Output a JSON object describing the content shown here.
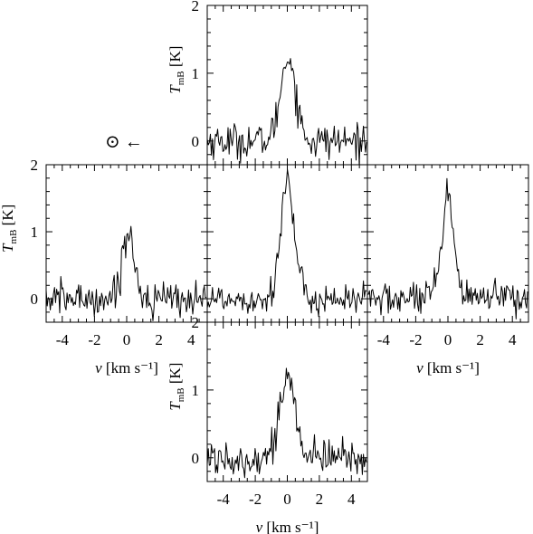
{
  "figure": {
    "sun_marker": "⊙ ←",
    "x_axis_label": "v [km s⁻¹]",
    "y_axis_label": "T_mB [K]"
  },
  "chart_data": [
    {
      "type": "line",
      "panel": "north",
      "xlim": [
        -5,
        5
      ],
      "ylim": [
        -0.35,
        2
      ],
      "x_ticks": [
        "-4",
        "-2",
        "0",
        "2",
        "4"
      ],
      "y_ticks": [
        "0",
        "1",
        "2"
      ],
      "tick_labels_shown": {
        "x": false,
        "y": true
      },
      "xlabel": "",
      "ylabel": "T_mB [K]",
      "noise_rms": 0.13,
      "series": [
        {
          "peak_velocity": 0.05,
          "peak_temperature": 1.25,
          "fwhm_km_s": 1.1
        }
      ]
    },
    {
      "type": "line",
      "panel": "east",
      "xlim": [
        -5,
        5
      ],
      "ylim": [
        -0.35,
        2
      ],
      "x_ticks": [
        "-4",
        "-2",
        "0",
        "2",
        "4"
      ],
      "y_ticks": [
        "0",
        "1",
        "2"
      ],
      "tick_labels_shown": {
        "x": true,
        "y": true
      },
      "xlabel": "v [km s⁻¹]",
      "ylabel": "T_mB [K]",
      "noise_rms": 0.13,
      "series": [
        {
          "peak_velocity": 0.1,
          "peak_temperature": 0.98,
          "fwhm_km_s": 0.9
        }
      ]
    },
    {
      "type": "line",
      "panel": "centre",
      "xlim": [
        -5,
        5
      ],
      "ylim": [
        -0.35,
        2
      ],
      "x_ticks": [
        "-4",
        "-2",
        "0",
        "2",
        "4"
      ],
      "y_ticks": [
        "0",
        "1",
        "2"
      ],
      "tick_labels_shown": {
        "x": false,
        "y": false
      },
      "xlabel": "",
      "ylabel": "",
      "noise_rms": 0.12,
      "series": [
        {
          "peak_velocity": 0.0,
          "peak_temperature": 1.75,
          "fwhm_km_s": 1.0
        }
      ]
    },
    {
      "type": "line",
      "panel": "west",
      "xlim": [
        -5,
        5
      ],
      "ylim": [
        -0.35,
        2
      ],
      "x_ticks": [
        "-4",
        "-2",
        "0",
        "2",
        "4"
      ],
      "y_ticks": [
        "0",
        "1",
        "2"
      ],
      "tick_labels_shown": {
        "x": true,
        "y": false
      },
      "xlabel": "v [km s⁻¹]",
      "ylabel": "",
      "noise_rms": 0.13,
      "series": [
        {
          "peak_velocity": 0.0,
          "peak_temperature": 1.45,
          "fwhm_km_s": 0.9
        }
      ]
    },
    {
      "type": "line",
      "panel": "south",
      "xlim": [
        -5,
        5
      ],
      "ylim": [
        -0.35,
        2
      ],
      "x_ticks": [
        "-4",
        "-2",
        "0",
        "2",
        "4"
      ],
      "y_ticks": [
        "0",
        "1",
        "2"
      ],
      "tick_labels_shown": {
        "x": true,
        "y": true
      },
      "xlabel": "v [km s⁻¹]",
      "ylabel": "T_mB [K]",
      "noise_rms": 0.13,
      "series": [
        {
          "peak_velocity": 0.0,
          "peak_temperature": 1.2,
          "fwhm_km_s": 1.1
        }
      ]
    }
  ]
}
